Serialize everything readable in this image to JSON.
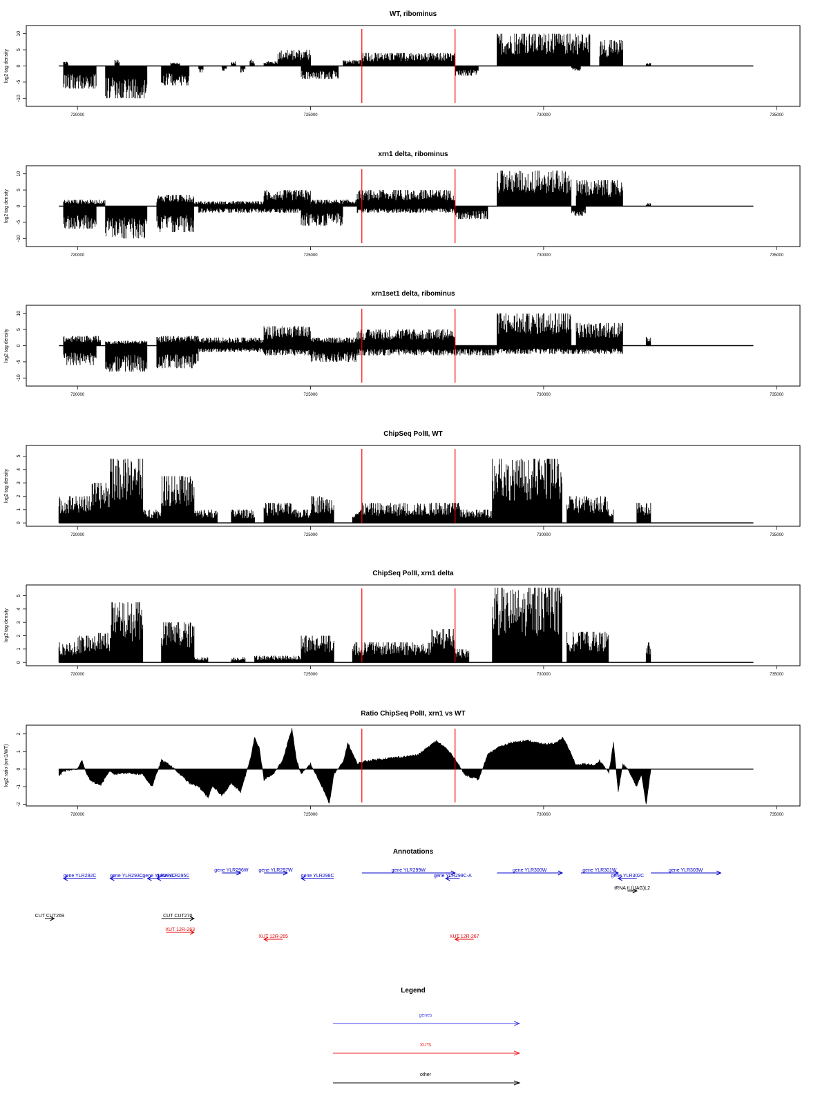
{
  "chart_data": [
    {
      "type": "bar",
      "title": "WT, ribominus",
      "ylabel": "log2 tag density",
      "ylim": [
        -12.5,
        12.5
      ],
      "yticks": [
        {
          "v": -10,
          "label": "-10"
        },
        {
          "v": -5,
          "label": "-5"
        },
        {
          "v": 0,
          "label": "0"
        },
        {
          "v": 5,
          "label": "5"
        },
        {
          "v": 10,
          "label": "10"
        }
      ],
      "series": [
        {
          "sign": 1,
          "regions": [
            [
              719700,
              719800,
              1.5
            ],
            [
              720800,
              720900,
              2
            ],
            [
              722000,
              722200,
              1
            ],
            [
              723300,
              723400,
              1.5
            ],
            [
              723700,
              723800,
              2
            ],
            [
              724000,
              724300,
              1.5
            ],
            [
              724300,
              725000,
              5
            ],
            [
              725700,
              726100,
              1.8
            ],
            [
              726100,
              728100,
              4
            ],
            [
              729000,
              731000,
              10
            ],
            [
              731200,
              731700,
              8
            ],
            [
              732200,
              732300,
              1
            ]
          ]
        },
        {
          "sign": -1,
          "regions": [
            [
              719700,
              720400,
              7
            ],
            [
              720600,
              721500,
              10
            ],
            [
              721800,
              722400,
              6
            ],
            [
              722600,
              722700,
              2
            ],
            [
              723100,
              723200,
              1.5
            ],
            [
              723500,
              723600,
              2
            ],
            [
              724800,
              725600,
              4
            ],
            [
              728100,
              728600,
              3
            ],
            [
              730600,
              730800,
              1.5
            ]
          ]
        }
      ],
      "vlines": [
        726100,
        728100
      ],
      "xticks": [
        720000,
        725000,
        730000,
        735000
      ]
    },
    {
      "type": "bar",
      "title": "xrn1 delta, ribominus",
      "ylabel": "log2 tag density",
      "ylim": [
        -12.5,
        12.5
      ],
      "yticks": [
        {
          "v": -10,
          "label": "-10"
        },
        {
          "v": -5,
          "label": "-5"
        },
        {
          "v": 0,
          "label": "0"
        },
        {
          "v": 5,
          "label": "5"
        },
        {
          "v": 10,
          "label": "10"
        }
      ],
      "series": [
        {
          "sign": 1,
          "regions": [
            [
              719700,
              720600,
              2
            ],
            [
              721700,
              722500,
              3.5
            ],
            [
              722500,
              724000,
              1.5
            ],
            [
              724000,
              725000,
              5
            ],
            [
              725000,
              726000,
              2
            ],
            [
              726000,
              728100,
              5
            ],
            [
              729000,
              730600,
              11
            ],
            [
              730700,
              731700,
              8
            ],
            [
              732200,
              732300,
              1
            ]
          ]
        },
        {
          "sign": -1,
          "regions": [
            [
              719700,
              720400,
              7
            ],
            [
              720600,
              721500,
              10
            ],
            [
              721700,
              722500,
              8
            ],
            [
              722600,
              724000,
              2
            ],
            [
              724000,
              724800,
              2
            ],
            [
              724800,
              725700,
              6
            ],
            [
              726000,
              728100,
              2
            ],
            [
              728100,
              728800,
              4
            ],
            [
              730600,
              730900,
              3
            ]
          ]
        }
      ],
      "vlines": [
        726100,
        728100
      ],
      "xticks": [
        720000,
        725000,
        730000,
        735000
      ]
    },
    {
      "type": "bar",
      "title": "xrn1set1 delta, ribominus",
      "ylabel": "log2 tag density",
      "ylim": [
        -12.5,
        12.5
      ],
      "yticks": [
        {
          "v": -10,
          "label": "-10"
        },
        {
          "v": -5,
          "label": "-5"
        },
        {
          "v": 0,
          "label": "0"
        },
        {
          "v": 5,
          "label": "5"
        },
        {
          "v": 10,
          "label": "10"
        }
      ],
      "series": [
        {
          "sign": 1,
          "regions": [
            [
              719700,
              720500,
              3
            ],
            [
              720600,
              721500,
              1.5
            ],
            [
              721700,
              722600,
              3
            ],
            [
              722600,
              724000,
              2.5
            ],
            [
              724000,
              725000,
              6
            ],
            [
              725000,
              726000,
              2.5
            ],
            [
              726000,
              728100,
              5
            ],
            [
              729000,
              730600,
              10
            ],
            [
              730700,
              731700,
              7
            ],
            [
              732200,
              732300,
              3
            ]
          ]
        },
        {
          "sign": -1,
          "regions": [
            [
              719700,
              720400,
              6
            ],
            [
              720600,
              721500,
              8
            ],
            [
              721700,
              722600,
              7
            ],
            [
              722600,
              724000,
              2
            ],
            [
              724000,
              725000,
              3
            ],
            [
              725000,
              726000,
              5
            ],
            [
              726000,
              728100,
              3
            ],
            [
              728100,
              729000,
              3
            ],
            [
              729000,
              731700,
              2.5
            ]
          ]
        }
      ],
      "vlines": [
        726100,
        728100
      ],
      "xticks": [
        720000,
        725000,
        730000,
        735000
      ]
    },
    {
      "type": "bar",
      "title": "ChipSeq PolII, WT",
      "ylabel": "log2 tag density",
      "ylim": [
        -0.25,
        5.8
      ],
      "yticks": [
        {
          "v": 0,
          "label": "0"
        },
        {
          "v": 1,
          "label": "1"
        },
        {
          "v": 2,
          "label": "2"
        },
        {
          "v": 3,
          "label": "3"
        },
        {
          "v": 4,
          "label": "4"
        },
        {
          "v": 5,
          "label": "5"
        }
      ],
      "series": [
        {
          "sign": 1,
          "regions": [
            [
              719600,
              720300,
              2
            ],
            [
              720300,
              720700,
              3
            ],
            [
              720700,
              721400,
              4.8
            ],
            [
              721400,
              721800,
              1
            ],
            [
              721800,
              722500,
              3.5
            ],
            [
              722500,
              723000,
              1
            ],
            [
              723300,
              723800,
              1
            ],
            [
              724000,
              724600,
              1.5
            ],
            [
              724600,
              725000,
              1
            ],
            [
              725000,
              725500,
              2
            ],
            [
              725900,
              726100,
              1
            ],
            [
              726100,
              728200,
              1.5
            ],
            [
              728200,
              728900,
              1
            ],
            [
              728900,
              730400,
              4.8
            ],
            [
              730500,
              731400,
              2
            ],
            [
              731400,
              731500,
              1
            ],
            [
              732000,
              732300,
              1.5
            ]
          ]
        }
      ],
      "vlines": [
        726100,
        728100
      ],
      "xticks": [
        720000,
        725000,
        730000,
        735000
      ]
    },
    {
      "type": "bar",
      "title": "ChipSeq PolII, xrn1 delta",
      "ylabel": "log2 tag density",
      "ylim": [
        -0.25,
        5.8
      ],
      "yticks": [
        {
          "v": 0,
          "label": "0"
        },
        {
          "v": 1,
          "label": "1"
        },
        {
          "v": 2,
          "label": "2"
        },
        {
          "v": 3,
          "label": "3"
        },
        {
          "v": 4,
          "label": "4"
        },
        {
          "v": 5,
          "label": "5"
        }
      ],
      "series": [
        {
          "sign": 1,
          "regions": [
            [
              719600,
              720000,
              1.5
            ],
            [
              720000,
              720400,
              2
            ],
            [
              720400,
              720700,
              2.2
            ],
            [
              720700,
              721400,
              4.5
            ],
            [
              721800,
              722500,
              3
            ],
            [
              722500,
              722800,
              0.4
            ],
            [
              723300,
              723600,
              0.4
            ],
            [
              723800,
              724800,
              0.5
            ],
            [
              724800,
              725500,
              2
            ],
            [
              725900,
              726200,
              1.5
            ],
            [
              726200,
              727600,
              1.5
            ],
            [
              727600,
              728100,
              2.5
            ],
            [
              728100,
              728400,
              1
            ],
            [
              728900,
              730400,
              5.6
            ],
            [
              730500,
              731400,
              2.3
            ],
            [
              732200,
              732300,
              1.5
            ]
          ]
        }
      ],
      "vlines": [
        726100,
        728100
      ],
      "xticks": [
        720000,
        725000,
        730000,
        735000
      ]
    },
    {
      "type": "area",
      "title": "Ratio ChipSeq PolII, xrn1 vs WT",
      "ylabel": "log2 ratio (xrn1/WT)",
      "ylim": [
        -2.1,
        2.5
      ],
      "yticks": [
        {
          "v": -2,
          "label": "-2"
        },
        {
          "v": -1,
          "label": "-1"
        },
        {
          "v": 0,
          "label": "0"
        },
        {
          "v": 1,
          "label": "1"
        },
        {
          "v": 2,
          "label": "2"
        }
      ],
      "x": [
        719600,
        719700,
        720000,
        720100,
        720200,
        720300,
        720500,
        720700,
        720800,
        721000,
        721400,
        721600,
        721800,
        722000,
        722200,
        722400,
        722600,
        722800,
        722900,
        723100,
        723300,
        723500,
        723700,
        723800,
        723900,
        724000,
        724200,
        724400,
        724600,
        724700,
        724800,
        725000,
        725300,
        725400,
        725500,
        725700,
        725800,
        726000,
        726100,
        726300,
        726600,
        727000,
        727300,
        727700,
        727900,
        728100,
        728300,
        728600,
        728800,
        729000,
        729300,
        729500,
        729700,
        730000,
        730300,
        730400,
        730500,
        730700,
        730900,
        731100,
        731200,
        731400,
        731500,
        731600,
        731700,
        731800,
        732000,
        732100,
        732200,
        732300
      ],
      "y": [
        -0.4,
        -0.1,
        0,
        0.5,
        -0.3,
        -0.7,
        -0.9,
        -0.1,
        -0.3,
        -0.2,
        -0.3,
        -1.0,
        0.5,
        0.2,
        -0.3,
        -0.8,
        -1.0,
        -1.6,
        -1.0,
        -1.5,
        -0.8,
        -1.3,
        0.5,
        1.8,
        1.2,
        -0.6,
        -0.3,
        0.5,
        2.3,
        0.5,
        -0.3,
        0.3,
        -1.3,
        -2.0,
        -0.3,
        0.4,
        1.5,
        0.3,
        0.4,
        0.5,
        0.6,
        0.7,
        0.8,
        1.6,
        1.2,
        0.6,
        -0.3,
        -0.6,
        0.8,
        1.2,
        1.5,
        1.6,
        1.6,
        1.4,
        1.5,
        1.8,
        1.4,
        0.2,
        0.3,
        0.2,
        0.5,
        -0.2,
        1.5,
        -1.3,
        0.3,
        0,
        -1.0,
        -0.3,
        -2.0,
        0
      ],
      "vlines": [
        726100,
        728100
      ],
      "xticks": [
        720000,
        725000,
        730000,
        735000
      ]
    }
  ],
  "xlim": [
    718900,
    735500
  ],
  "xtick_labels": [
    "720000",
    "725000",
    "730000",
    "735000"
  ],
  "annotations": {
    "title": "Annotations",
    "features": [
      {
        "label": "gene YLR292C",
        "x1": 719700,
        "x2": 720400,
        "dir": -1,
        "row": 1,
        "color": "#0000cc"
      },
      {
        "label": "gene YLR293C",
        "x1": 720700,
        "x2": 721400,
        "dir": -1,
        "row": 1,
        "color": "#0000cc"
      },
      {
        "label": "gene YLR294C",
        "x1": 721500,
        "x2": 722000,
        "dir": -1,
        "row": 1,
        "color": "#0000cc"
      },
      {
        "label": "gene YLR295C",
        "x1": 721700,
        "x2": 722400,
        "dir": -1,
        "row": 1,
        "color": "#0000cc"
      },
      {
        "label": "gene YLR296W",
        "x1": 723100,
        "x2": 723500,
        "dir": 1,
        "row": 0,
        "color": "#0000cc"
      },
      {
        "label": "gene YLR297W",
        "x1": 724000,
        "x2": 724500,
        "dir": 1,
        "row": 0,
        "color": "#0000cc"
      },
      {
        "label": "gene YLR298C",
        "x1": 724800,
        "x2": 725500,
        "dir": -1,
        "row": 1,
        "color": "#0000cc"
      },
      {
        "label": "gene YLR299W",
        "x1": 726100,
        "x2": 728100,
        "dir": 1,
        "row": 0,
        "color": "#0000cc"
      },
      {
        "label": "gene YLR299C-A",
        "x1": 727900,
        "x2": 728200,
        "dir": -1,
        "row": 1,
        "color": "#0000cc"
      },
      {
        "label": "gene YLR300W",
        "x1": 729000,
        "x2": 730400,
        "dir": 1,
        "row": 0,
        "color": "#0000cc"
      },
      {
        "label": "gene YLR301W",
        "x1": 730800,
        "x2": 731600,
        "dir": 1,
        "row": 0,
        "color": "#0000cc"
      },
      {
        "label": "gene YLR302C",
        "x1": 731600,
        "x2": 732000,
        "dir": -1,
        "row": 1,
        "color": "#0000cc"
      },
      {
        "label": "gene YLR303W",
        "x1": 732300,
        "x2": 733800,
        "dir": 1,
        "row": 0,
        "color": "#0000cc"
      },
      {
        "label": "tRNA tL(UAG)L2",
        "x1": 731800,
        "x2": 732000,
        "dir": 1,
        "row": 2,
        "color": "#000000"
      },
      {
        "label": "CUT CUT269",
        "x1": 719300,
        "x2": 719500,
        "dir": 1,
        "row": 3,
        "color": "#000000"
      },
      {
        "label": "CUT CUT270",
        "x1": 721800,
        "x2": 722500,
        "dir": 1,
        "row": 3,
        "color": "#000000"
      },
      {
        "label": "XUT 12R-263",
        "x1": 721900,
        "x2": 722500,
        "dir": 1,
        "row": 4,
        "color": "#e00000"
      },
      {
        "label": "XUT 12R-265",
        "x1": 724000,
        "x2": 724400,
        "dir": -1,
        "row": 5,
        "color": "#e00000"
      },
      {
        "label": "XUT 12R-267",
        "x1": 728100,
        "x2": 728500,
        "dir": -1,
        "row": 5,
        "color": "#e00000"
      }
    ]
  },
  "legend": {
    "title": "Legend",
    "items": [
      {
        "label": "genes",
        "color": "#4444ee"
      },
      {
        "label": "XUTs",
        "color": "#ee2222"
      },
      {
        "label": "other",
        "color": "#000000"
      }
    ]
  }
}
